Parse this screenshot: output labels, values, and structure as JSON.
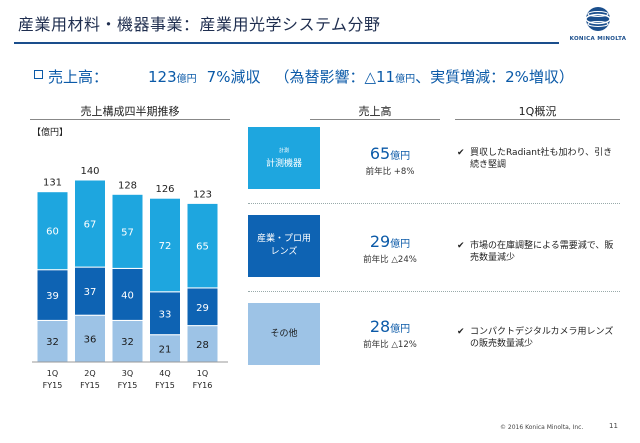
{
  "header": {
    "title": "産業用材料・機器事業：産業用光学システム分野",
    "logo_text": "KONICA MINOLTA"
  },
  "headline": {
    "label": "売上高：",
    "value": "123",
    "unit": "億円",
    "change": "7%減収",
    "detail_prefix": "（為替影響：△11",
    "detail_unit": "億円",
    "detail_suffix": "、実質増減：2%増収）"
  },
  "columns": {
    "chart_title": "売上構成四半期推移",
    "sales_title": "売上高",
    "summary_title": "1Q概況"
  },
  "chart_unit": "【億円】",
  "chart_data": {
    "type": "bar",
    "stacked": true,
    "title": "売上構成四半期推移",
    "categories": [
      "1Q FY15",
      "2Q FY15",
      "3Q FY15",
      "4Q FY15",
      "1Q FY16"
    ],
    "category_lines": [
      [
        "1Q",
        "FY15"
      ],
      [
        "2Q",
        "FY15"
      ],
      [
        "3Q",
        "FY15"
      ],
      [
        "4Q",
        "FY15"
      ],
      [
        "1Q",
        "FY16"
      ]
    ],
    "totals": [
      131,
      140,
      128,
      126,
      123
    ],
    "series": [
      {
        "values": [
          32,
          36,
          32,
          21,
          28
        ],
        "color": "#9dc3e6"
      },
      {
        "values": [
          39,
          37,
          40,
          33,
          29
        ],
        "color": "#0e63b3"
      },
      {
        "values": [
          60,
          67,
          57,
          72,
          65
        ],
        "color": "#1ea6df"
      }
    ],
    "ylim": [
      0,
      150
    ]
  },
  "segments": [
    {
      "name_main": "計測機器",
      "name_sub": "計測",
      "box_color": "#1ea6df",
      "text_color": "#ffffff",
      "sales_value": "65",
      "sales_unit": "億円",
      "yoy": "前年比 +8%",
      "comment": "買収したRadiant社も加わり、引き続き堅調"
    },
    {
      "name_main": "産業・プロ用レンズ",
      "name_sub": "",
      "box_color": "#0e63b3",
      "text_color": "#ffffff",
      "sales_value": "29",
      "sales_unit": "億円",
      "yoy": "前年比 △24%",
      "comment": "市場の在庫調整による需要減で、販売数量減少"
    },
    {
      "name_main": "その他",
      "name_sub": "",
      "box_color": "#9dc3e6",
      "text_color": "#1a1a1a",
      "sales_value": "28",
      "sales_unit": "億円",
      "yoy": "前年比 △12%",
      "comment": "コンパクトデジタルカメラ用レンズの販売数量減少"
    }
  ],
  "footer": {
    "copyright": "© 2016 Konica Minolta, Inc.",
    "page": "11"
  }
}
